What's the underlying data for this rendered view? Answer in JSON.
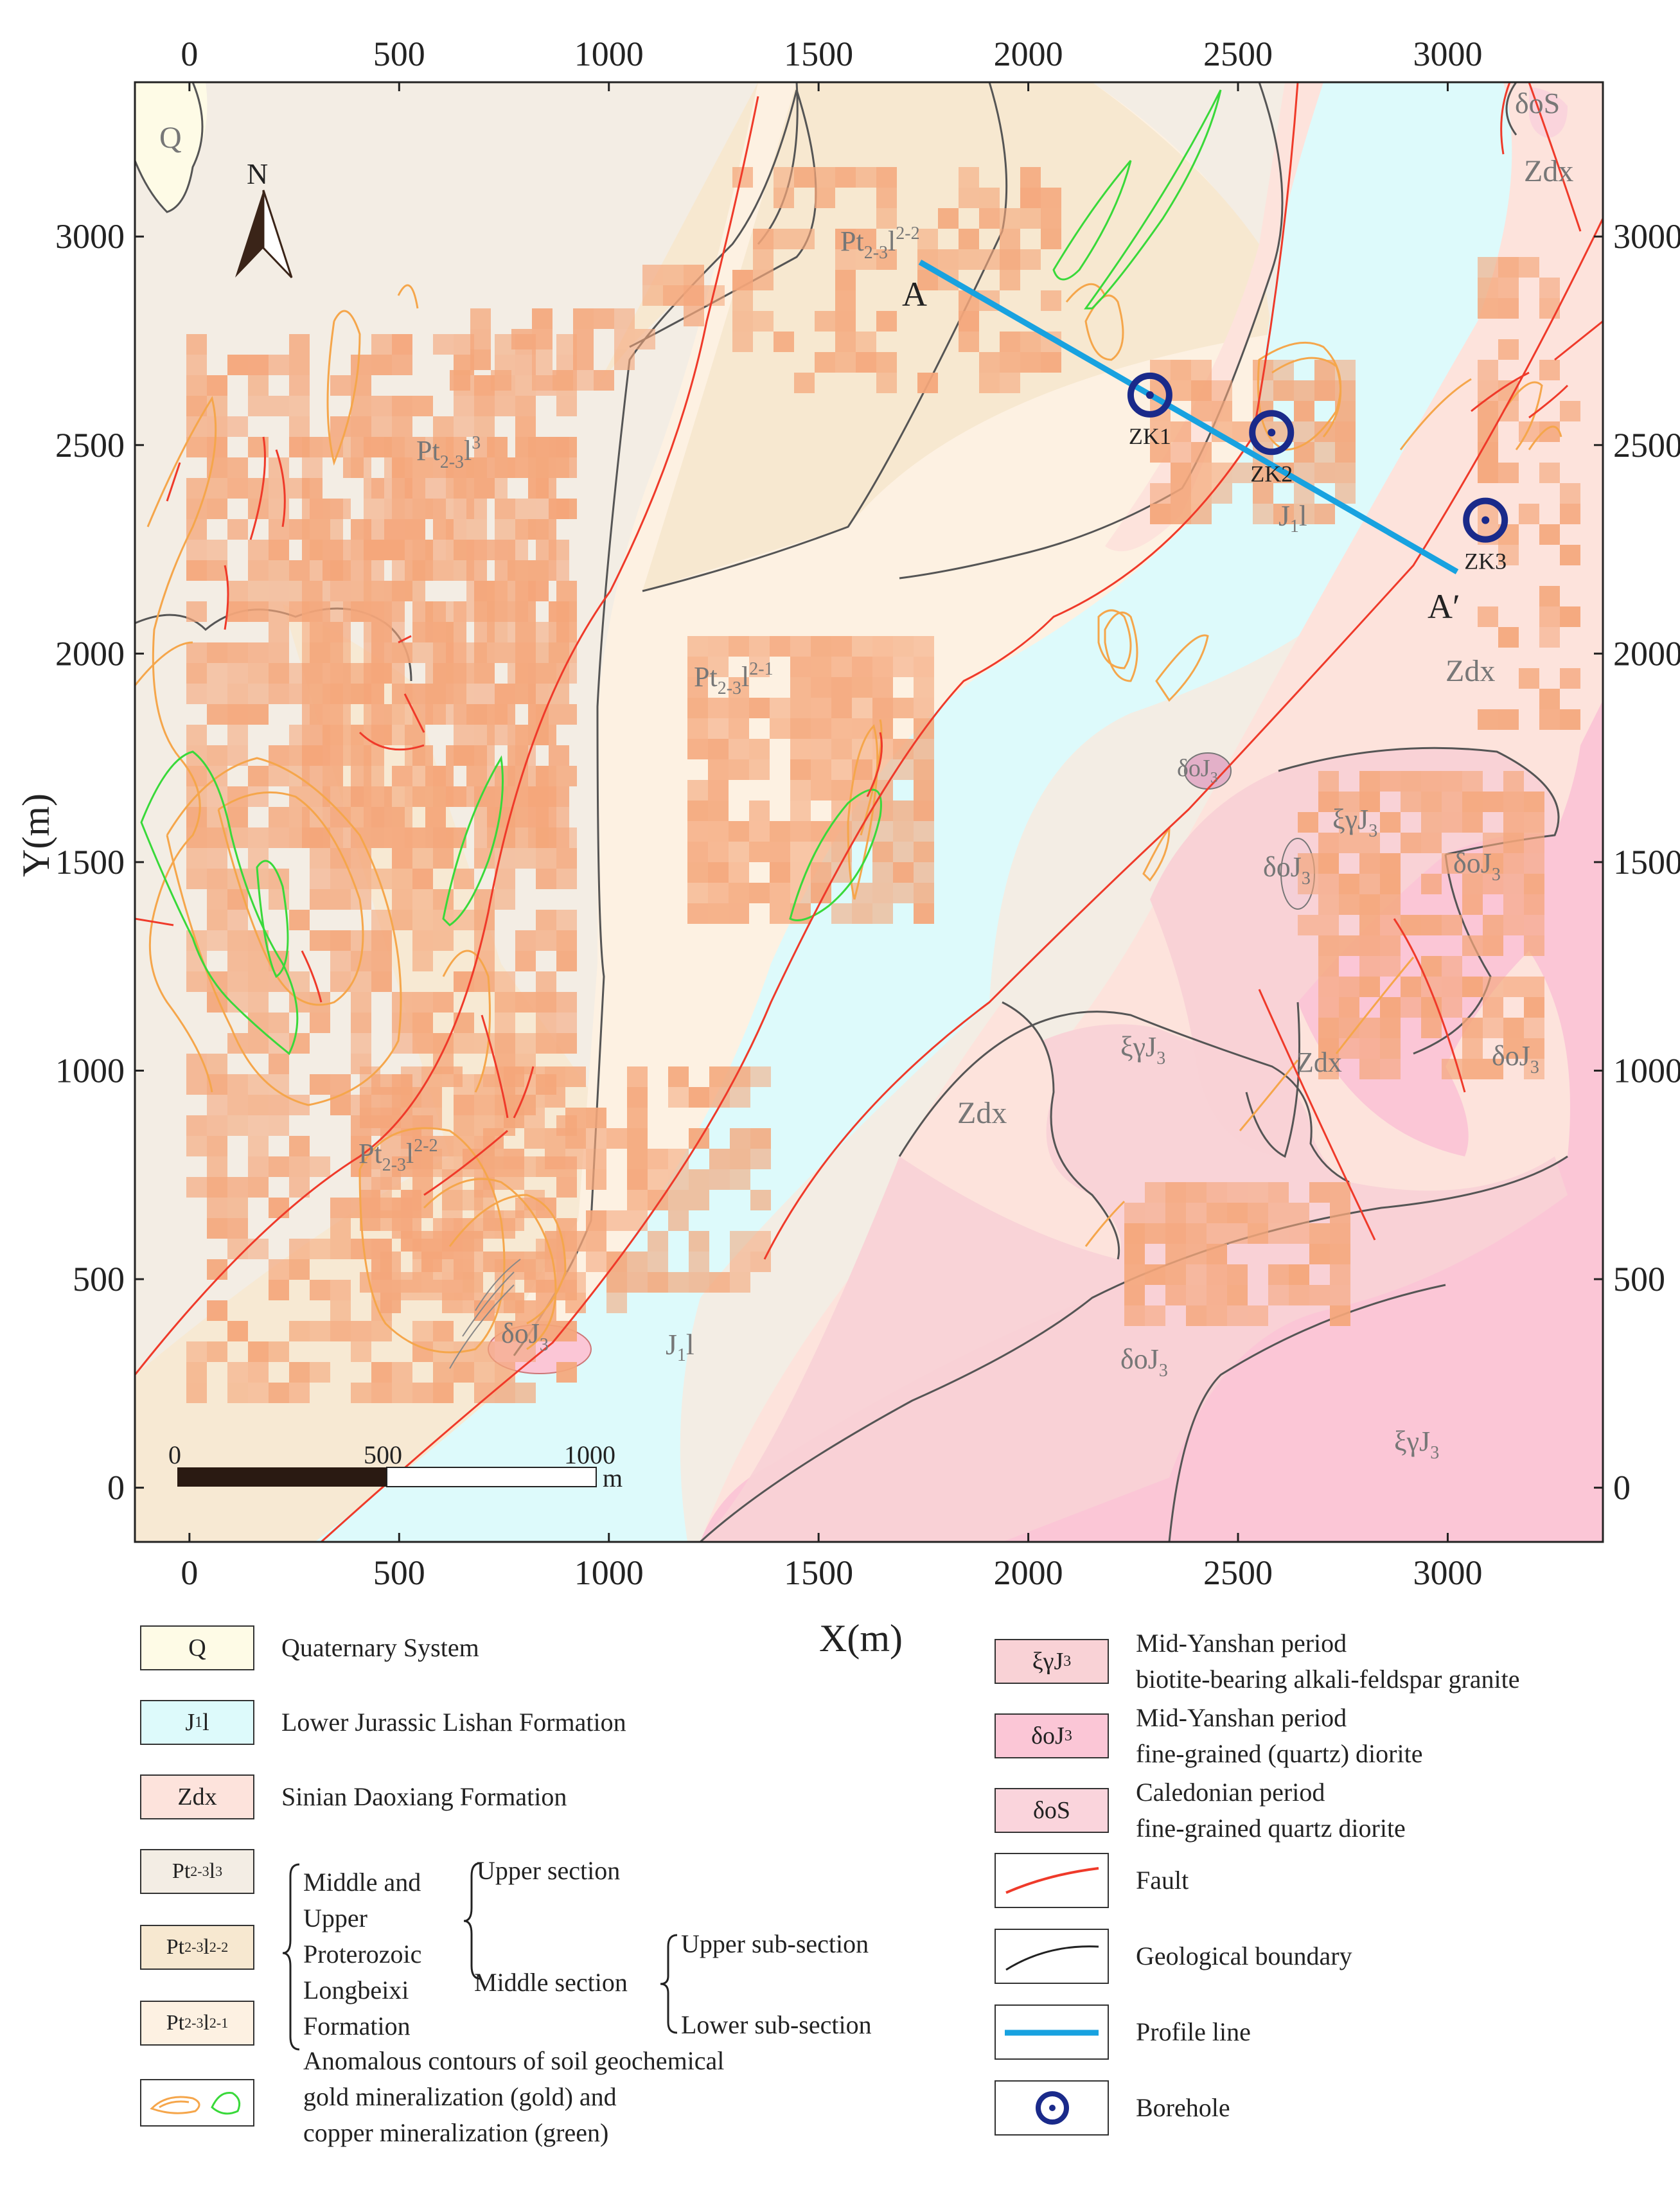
{
  "axes": {
    "x_title": "X(m)",
    "y_title": "Y(m)",
    "x_ticks": [
      "0",
      "500",
      "1000",
      "1500",
      "2000",
      "2500",
      "3000"
    ],
    "y_ticks": [
      "0",
      "500",
      "1000",
      "1500",
      "2000",
      "2500",
      "3000"
    ],
    "x_range": [
      -130,
      3370
    ],
    "y_range": [
      -130,
      3370
    ]
  },
  "map": {
    "north_label": "N",
    "scale_bar": {
      "labels": [
        "0",
        "500",
        "1000"
      ],
      "unit": "m"
    },
    "profile": {
      "start_label": "A",
      "end_label": "A′",
      "color": "#18a2e0"
    },
    "boreholes": [
      {
        "label": "ZK1",
        "x": 2290,
        "y": 2620
      },
      {
        "label": "ZK2",
        "x": 2580,
        "y": 2530
      },
      {
        "label": "ZK3",
        "x": 3090,
        "y": 2320
      }
    ],
    "unit_labels": {
      "q": "Q",
      "pt_l3": "Pt",
      "pt_l3_sub": "2-3",
      "pt_l3_sup": "l",
      "pt_l3_exp": "3",
      "pt_l22_a": "Pt",
      "pt_l22_sub": "2-3",
      "pt_l22_l": "l",
      "pt_l22_exp": "2-2",
      "pt_l21_sub": "2-3",
      "pt_l21_exp": "2-1",
      "j1l": "J",
      "j1l_sub": "1",
      "j1l_l": "l",
      "zdx": "Zdx",
      "dos": "δoS",
      "doj3": "δoJ",
      "doj3_sub": "3",
      "xgj3": "ξγJ",
      "xgj3_sub": "3"
    }
  },
  "colors": {
    "quaternary": "#fefbe6",
    "jurassic": "#ddfafb",
    "sinian": "#fde3dc",
    "pt_l3": "#f3ede4",
    "pt_l22": "#f7e8d0",
    "pt_l21": "#fdf1e2",
    "granite": "#f9d2d6",
    "diorite": "#fbc6d6",
    "caledonian": "#fad4dc",
    "anomaly_cell": "#f4a67a",
    "fault": "#ef3a2a",
    "gold_contour": "#f5a64b",
    "copper_contour": "#39d93a",
    "borehole": "#1a2a8a"
  },
  "legend": {
    "left": [
      {
        "symbol": "Q",
        "label": "Quaternary System",
        "color": "#fefbe6"
      },
      {
        "symbol": "J",
        "symbol_sub": "1",
        "symbol_tail": "l",
        "label": "Lower Jurassic Lishan Formation",
        "color": "#ddfafb"
      },
      {
        "symbol": "Zdx",
        "label": "Sinian Daoxiang Formation",
        "color": "#fde3dc"
      },
      {
        "symbol": "Pt",
        "symbol_sub": "2-3",
        "symbol_tail": "l",
        "symbol_sup": "3",
        "color": "#f3ede4"
      },
      {
        "symbol": "Pt",
        "symbol_sub": "2-3",
        "symbol_tail": "l",
        "symbol_sup": "2-2",
        "color": "#f7e8d0"
      },
      {
        "symbol": "Pt",
        "symbol_sub": "2-3",
        "symbol_tail": "l",
        "symbol_sup": "2-1",
        "color": "#fdf1e2"
      }
    ],
    "formation_lines": [
      "Middle and",
      "Upper",
      "Proterozoic",
      "Longbeixi",
      "Formation"
    ],
    "section_upper": "Upper section",
    "section_middle": "Middle section",
    "subsection_upper": "Upper sub-section",
    "subsection_lower": "Lower sub-section",
    "anomaly_lines": [
      "Anomalous contours of soil geochemical",
      "gold mineralization (gold) and",
      "copper mineralization (green)"
    ],
    "right": [
      {
        "symbol": "ξγJ",
        "symbol_sub": "3",
        "lines": [
          "Mid-Yanshan period",
          "biotite-bearing alkali-feldspar granite"
        ],
        "color": "#f9d2d6"
      },
      {
        "symbol": "δoJ",
        "symbol_sub": "3",
        "lines": [
          "Mid-Yanshan period",
          "fine-grained (quartz) diorite"
        ],
        "color": "#fbc6d6"
      },
      {
        "symbol": "δoS",
        "lines": [
          "Caledonian period",
          "fine-grained quartz diorite"
        ],
        "color": "#fad4dc"
      }
    ],
    "fault": "Fault",
    "boundary": "Geological boundary",
    "profile": "Profile line",
    "borehole": "Borehole"
  }
}
